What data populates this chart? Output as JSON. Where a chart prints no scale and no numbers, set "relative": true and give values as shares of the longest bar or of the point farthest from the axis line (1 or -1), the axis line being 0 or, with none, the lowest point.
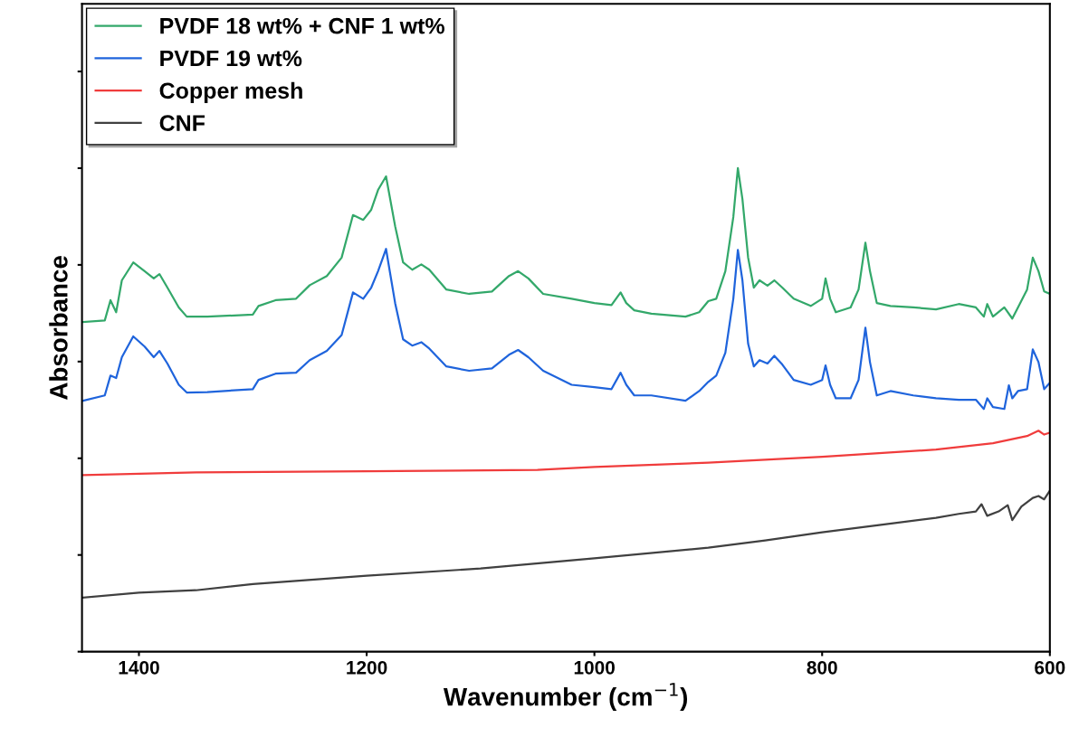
{
  "chart_data": {
    "type": "line",
    "relative": true,
    "xlabel": "Wavenumber (cm$^{−1}$)",
    "ylabel": "Absorbance",
    "xlim": [
      1450,
      600
    ],
    "xticks": [
      1400,
      1200,
      1000,
      800,
      600
    ],
    "legend": "top left",
    "grid": false,
    "marker": "none",
    "line_style": "solid",
    "series": [
      {
        "name": "PVDF 18 wt% + CNF 1 wt%",
        "color": "#33a86a",
        "x": [
          1449,
          1430,
          1425,
          1420,
          1415,
          1405,
          1395,
          1387,
          1382,
          1375,
          1365,
          1358,
          1340,
          1300,
          1295,
          1280,
          1262,
          1250,
          1235,
          1222,
          1212,
          1203,
          1196,
          1190,
          1183,
          1175,
          1168,
          1160,
          1152,
          1145,
          1130,
          1110,
          1090,
          1075,
          1067,
          1058,
          1045,
          1020,
          1000,
          985,
          977,
          972,
          965,
          950,
          920,
          908,
          900,
          893,
          885,
          878,
          874,
          870,
          865,
          860,
          855,
          848,
          842,
          835,
          825,
          810,
          800,
          797,
          793,
          788,
          775,
          768,
          762,
          758,
          752,
          740,
          720,
          700,
          680,
          665,
          658,
          655,
          650,
          640,
          633,
          628,
          620,
          615,
          610,
          605,
          600
        ],
        "values": [
          0.682,
          0.685,
          0.727,
          0.702,
          0.768,
          0.805,
          0.787,
          0.772,
          0.781,
          0.753,
          0.712,
          0.693,
          0.693,
          0.697,
          0.715,
          0.727,
          0.73,
          0.758,
          0.777,
          0.815,
          0.903,
          0.893,
          0.914,
          0.955,
          0.983,
          0.88,
          0.805,
          0.79,
          0.801,
          0.79,
          0.749,
          0.74,
          0.745,
          0.777,
          0.787,
          0.772,
          0.74,
          0.73,
          0.721,
          0.717,
          0.743,
          0.721,
          0.706,
          0.699,
          0.693,
          0.702,
          0.725,
          0.73,
          0.787,
          0.899,
          1.0,
          0.936,
          0.815,
          0.753,
          0.768,
          0.757,
          0.768,
          0.753,
          0.73,
          0.715,
          0.73,
          0.772,
          0.73,
          0.702,
          0.712,
          0.749,
          0.846,
          0.787,
          0.721,
          0.715,
          0.712,
          0.708,
          0.719,
          0.712,
          0.693,
          0.719,
          0.693,
          0.712,
          0.689,
          0.712,
          0.749,
          0.815,
          0.787,
          0.745,
          0.74
        ]
      },
      {
        "name": "PVDF 19 wt%",
        "color": "#1f64dc",
        "x": [
          1449,
          1430,
          1425,
          1420,
          1415,
          1405,
          1395,
          1387,
          1382,
          1375,
          1365,
          1358,
          1340,
          1300,
          1295,
          1280,
          1262,
          1250,
          1235,
          1222,
          1212,
          1203,
          1196,
          1190,
          1183,
          1175,
          1168,
          1160,
          1152,
          1145,
          1130,
          1110,
          1090,
          1075,
          1067,
          1058,
          1045,
          1020,
          1000,
          985,
          977,
          972,
          965,
          950,
          920,
          908,
          900,
          893,
          885,
          878,
          874,
          870,
          865,
          860,
          855,
          848,
          842,
          835,
          825,
          810,
          800,
          797,
          793,
          788,
          775,
          768,
          762,
          758,
          752,
          740,
          720,
          700,
          680,
          665,
          658,
          655,
          650,
          640,
          636,
          633,
          628,
          620,
          615,
          610,
          605,
          600
        ],
        "values": [
          0.519,
          0.53,
          0.571,
          0.566,
          0.609,
          0.652,
          0.631,
          0.609,
          0.622,
          0.596,
          0.552,
          0.536,
          0.537,
          0.543,
          0.562,
          0.575,
          0.577,
          0.603,
          0.622,
          0.655,
          0.743,
          0.73,
          0.753,
          0.787,
          0.833,
          0.721,
          0.646,
          0.633,
          0.64,
          0.627,
          0.59,
          0.581,
          0.586,
          0.614,
          0.624,
          0.609,
          0.581,
          0.552,
          0.547,
          0.543,
          0.577,
          0.552,
          0.53,
          0.53,
          0.519,
          0.539,
          0.558,
          0.571,
          0.618,
          0.73,
          0.831,
          0.768,
          0.637,
          0.59,
          0.603,
          0.596,
          0.612,
          0.594,
          0.562,
          0.552,
          0.562,
          0.592,
          0.552,
          0.524,
          0.524,
          0.562,
          0.67,
          0.599,
          0.53,
          0.539,
          0.53,
          0.524,
          0.521,
          0.521,
          0.502,
          0.524,
          0.506,
          0.502,
          0.551,
          0.524,
          0.539,
          0.543,
          0.625,
          0.599,
          0.543,
          0.556
        ]
      },
      {
        "name": "Copper mesh",
        "color": "#f03c3c",
        "x": [
          1449,
          1350,
          1200,
          1050,
          1000,
          900,
          800,
          700,
          650,
          620,
          610,
          605,
          600
        ],
        "values": [
          0.365,
          0.371,
          0.373,
          0.376,
          0.382,
          0.391,
          0.403,
          0.418,
          0.431,
          0.446,
          0.457,
          0.449,
          0.453
        ]
      },
      {
        "name": "CNF",
        "color": "#404040",
        "x": [
          1449,
          1400,
          1350,
          1300,
          1200,
          1100,
          1000,
          900,
          850,
          800,
          750,
          700,
          680,
          665,
          660,
          655,
          645,
          637,
          633,
          625,
          615,
          610,
          605,
          600
        ],
        "values": [
          0.112,
          0.122,
          0.127,
          0.14,
          0.157,
          0.172,
          0.193,
          0.215,
          0.23,
          0.247,
          0.262,
          0.277,
          0.285,
          0.29,
          0.305,
          0.281,
          0.29,
          0.303,
          0.272,
          0.3,
          0.318,
          0.322,
          0.315,
          0.333
        ]
      }
    ]
  }
}
